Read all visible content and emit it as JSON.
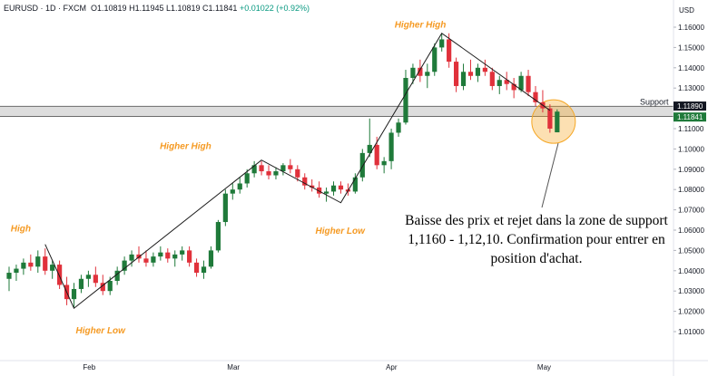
{
  "header": {
    "symbol": "EURUSD · 1D · FXCM",
    "open": "O1.10819",
    "high": "H1.11945",
    "low": "L1.10819",
    "close": "C1.11841",
    "change": "+0.01022 (+0.92%)"
  },
  "currency_label": "USD",
  "support_label": "Support",
  "price_tags": [
    "1.11890",
    "1.11841"
  ],
  "callout_text": "Baisse des prix et rejet dans la zone de support 1,1160 - 1,12,10. Confirmation pour entrer en position d'achat.",
  "colors": {
    "up": "#1f7a3a",
    "down": "#e0313b",
    "zone": "#f5a623",
    "annotation": "#f59a23"
  },
  "chart_data": {
    "type": "candlestick",
    "title": "",
    "ylim": [
      1.0,
      1.165
    ],
    "y_ticks": [
      "1.16000",
      "1.15000",
      "1.14000",
      "1.13000",
      "1.11000",
      "1.10000",
      "1.09000",
      "1.08000",
      "1.07000",
      "1.06000",
      "1.05000",
      "1.04000",
      "1.03000",
      "1.02000",
      "1.01000"
    ],
    "x_ticks": [
      {
        "label": "Feb",
        "index": 11
      },
      {
        "label": "Mar",
        "index": 31
      },
      {
        "label": "Apr",
        "index": 53
      },
      {
        "label": "May",
        "index": 74
      }
    ],
    "support_zone": [
      1.116,
      1.121
    ],
    "candles": [
      [
        1.036,
        1.042,
        1.03,
        1.039
      ],
      [
        1.039,
        1.043,
        1.035,
        1.041
      ],
      [
        1.041,
        1.046,
        1.038,
        1.044
      ],
      [
        1.044,
        1.048,
        1.04,
        1.042
      ],
      [
        1.042,
        1.05,
        1.039,
        1.047
      ],
      [
        1.047,
        1.051,
        1.038,
        1.04
      ],
      [
        1.04,
        1.045,
        1.036,
        1.043
      ],
      [
        1.043,
        1.045,
        1.031,
        1.033
      ],
      [
        1.033,
        1.037,
        1.023,
        1.026
      ],
      [
        1.026,
        1.034,
        1.022,
        1.031
      ],
      [
        1.031,
        1.038,
        1.029,
        1.036
      ],
      [
        1.036,
        1.04,
        1.032,
        1.038
      ],
      [
        1.038,
        1.042,
        1.032,
        1.034
      ],
      [
        1.034,
        1.038,
        1.028,
        1.03
      ],
      [
        1.03,
        1.037,
        1.028,
        1.035
      ],
      [
        1.035,
        1.042,
        1.033,
        1.04
      ],
      [
        1.04,
        1.047,
        1.038,
        1.045
      ],
      [
        1.045,
        1.05,
        1.042,
        1.048
      ],
      [
        1.048,
        1.052,
        1.044,
        1.046
      ],
      [
        1.046,
        1.05,
        1.042,
        1.044
      ],
      [
        1.044,
        1.049,
        1.042,
        1.047
      ],
      [
        1.047,
        1.052,
        1.045,
        1.049
      ],
      [
        1.049,
        1.051,
        1.044,
        1.046
      ],
      [
        1.046,
        1.05,
        1.042,
        1.048
      ],
      [
        1.048,
        1.052,
        1.045,
        1.05
      ],
      [
        1.05,
        1.052,
        1.042,
        1.044
      ],
      [
        1.044,
        1.046,
        1.037,
        1.039
      ],
      [
        1.039,
        1.045,
        1.036,
        1.042
      ],
      [
        1.042,
        1.052,
        1.041,
        1.05
      ],
      [
        1.05,
        1.065,
        1.049,
        1.064
      ],
      [
        1.064,
        1.08,
        1.062,
        1.078
      ],
      [
        1.078,
        1.083,
        1.075,
        1.08
      ],
      [
        1.08,
        1.086,
        1.078,
        1.083
      ],
      [
        1.083,
        1.09,
        1.081,
        1.088
      ],
      [
        1.088,
        1.094,
        1.086,
        1.092
      ],
      [
        1.092,
        1.094,
        1.087,
        1.089
      ],
      [
        1.089,
        1.092,
        1.085,
        1.087
      ],
      [
        1.087,
        1.091,
        1.085,
        1.089
      ],
      [
        1.089,
        1.093,
        1.087,
        1.092
      ],
      [
        1.092,
        1.095,
        1.088,
        1.09
      ],
      [
        1.09,
        1.092,
        1.084,
        1.086
      ],
      [
        1.086,
        1.088,
        1.08,
        1.082
      ],
      [
        1.082,
        1.085,
        1.079,
        1.081
      ],
      [
        1.081,
        1.084,
        1.076,
        1.078
      ],
      [
        1.078,
        1.081,
        1.074,
        1.079
      ],
      [
        1.079,
        1.084,
        1.077,
        1.082
      ],
      [
        1.082,
        1.084,
        1.078,
        1.08
      ],
      [
        1.08,
        1.083,
        1.077,
        1.079
      ],
      [
        1.079,
        1.088,
        1.078,
        1.086
      ],
      [
        1.086,
        1.1,
        1.084,
        1.098
      ],
      [
        1.098,
        1.115,
        1.096,
        1.102
      ],
      [
        1.102,
        1.106,
        1.09,
        1.092
      ],
      [
        1.092,
        1.096,
        1.088,
        1.094
      ],
      [
        1.094,
        1.11,
        1.09,
        1.108
      ],
      [
        1.108,
        1.115,
        1.106,
        1.113
      ],
      [
        1.113,
        1.139,
        1.112,
        1.135
      ],
      [
        1.135,
        1.142,
        1.132,
        1.14
      ],
      [
        1.14,
        1.144,
        1.133,
        1.136
      ],
      [
        1.136,
        1.142,
        1.13,
        1.138
      ],
      [
        1.138,
        1.152,
        1.136,
        1.15
      ],
      [
        1.15,
        1.157,
        1.148,
        1.154
      ],
      [
        1.154,
        1.157,
        1.14,
        1.143
      ],
      [
        1.143,
        1.145,
        1.128,
        1.131
      ],
      [
        1.131,
        1.142,
        1.129,
        1.138
      ],
      [
        1.138,
        1.144,
        1.134,
        1.136
      ],
      [
        1.136,
        1.142,
        1.133,
        1.14
      ],
      [
        1.14,
        1.144,
        1.136,
        1.138
      ],
      [
        1.138,
        1.14,
        1.129,
        1.131
      ],
      [
        1.131,
        1.136,
        1.127,
        1.134
      ],
      [
        1.134,
        1.138,
        1.129,
        1.132
      ],
      [
        1.132,
        1.135,
        1.125,
        1.129
      ],
      [
        1.129,
        1.138,
        1.128,
        1.136
      ],
      [
        1.136,
        1.139,
        1.126,
        1.128
      ],
      [
        1.128,
        1.131,
        1.121,
        1.123
      ],
      [
        1.123,
        1.129,
        1.118,
        1.12
      ],
      [
        1.12,
        1.122,
        1.108,
        1.11
      ],
      [
        1.1082,
        1.1195,
        1.1082,
        1.1184
      ]
    ],
    "trend_points": [
      {
        "index": 5,
        "price": 1.053,
        "label": "High"
      },
      {
        "index": 9,
        "price": 1.0215,
        "label": "Higher Low"
      },
      {
        "index": 35,
        "price": 1.0945,
        "label": "Higher High"
      },
      {
        "index": 46,
        "price": 1.0735,
        "label": "Higher Low"
      },
      {
        "index": 60,
        "price": 1.157,
        "label": "Higher High"
      },
      {
        "index": 75,
        "price": 1.119,
        "label": ""
      }
    ]
  }
}
